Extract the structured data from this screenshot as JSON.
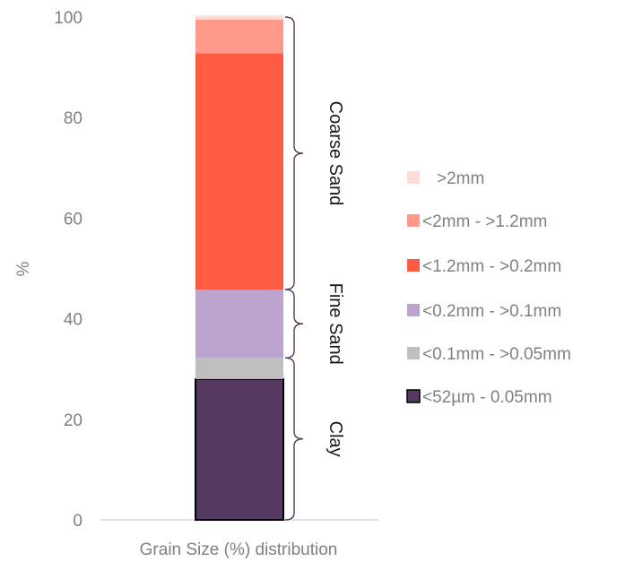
{
  "chart_data": {
    "type": "bar",
    "stacked": true,
    "categories": [
      "Grain Size (%) distribution"
    ],
    "ylabel": "%",
    "ylim": [
      0,
      100
    ],
    "yticks": [
      0,
      20,
      40,
      60,
      80,
      100
    ],
    "grid": false,
    "legend_position": "right",
    "series": [
      {
        "name": "<52µm - 0.05mm",
        "values": [
          28
        ],
        "color": "#553961",
        "stroke": "#000000"
      },
      {
        "name": "<0.1mm - >0.05mm",
        "values": [
          4.2
        ],
        "color": "#BFBFBF"
      },
      {
        "name": "<0.2mm - >0.1mm",
        "values": [
          13.6
        ],
        "color": "#BBA5CE"
      },
      {
        "name": "<1.2mm - >0.2mm",
        "values": [
          47
        ],
        "color": "#FF5B42"
      },
      {
        "name": "<2mm - >1.2mm",
        "values": [
          6.7
        ],
        "color": "#FF9A8A"
      },
      {
        "name": ">2mm",
        "values": [
          0.8
        ],
        "color": "#FFDCD8"
      }
    ],
    "legend_order": [
      5,
      4,
      3,
      2,
      1,
      0
    ],
    "brackets": [
      {
        "label": "Coarse Sand",
        "from": 45.8,
        "to": 100
      },
      {
        "label": "Fine Sand",
        "from": 32.2,
        "to": 45.8
      },
      {
        "label": "Clay",
        "from": 0,
        "to": 32.2
      }
    ]
  }
}
